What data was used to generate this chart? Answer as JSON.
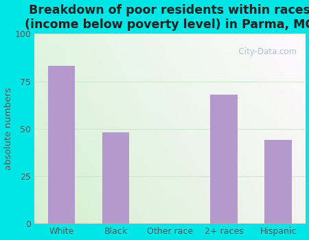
{
  "categories": [
    "White",
    "Black",
    "Other race",
    "2+ races",
    "Hispanic"
  ],
  "values": [
    83,
    48,
    0,
    68,
    44
  ],
  "bar_color": "#b399cc",
  "title": "Breakdown of poor residents within races\n(income below poverty level) in Parma, MO",
  "ylabel": "absolute numbers",
  "ylim": [
    0,
    100
  ],
  "yticks": [
    0,
    25,
    50,
    75,
    100
  ],
  "bg_outer": "#00e5e5",
  "grid_color": "#d0e8d0",
  "watermark": "  City-Data.com",
  "title_fontsize": 12.5,
  "label_fontsize": 9.5,
  "tick_fontsize": 9
}
